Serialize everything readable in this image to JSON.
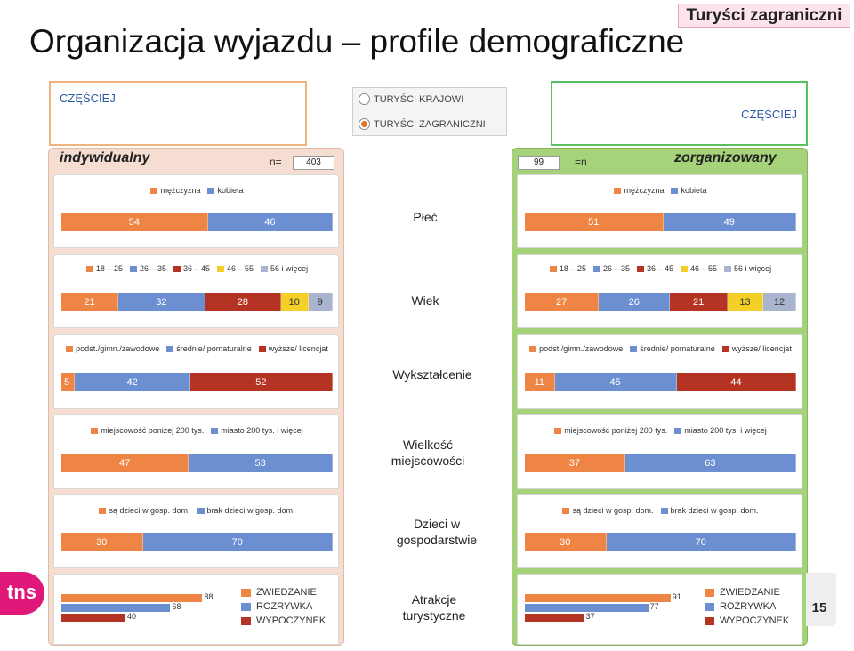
{
  "header": {
    "title": "Organizacja wyjazdu – profile demograficzne",
    "badge": "Turyści zagraniczni",
    "page_number": "15",
    "logo_text": "tns"
  },
  "controls": {
    "left_frequency": "CZĘŚCIEJ",
    "right_frequency": "CZĘŚCIEJ",
    "radio_options": [
      {
        "label": "TURYŚCI KRAJOWI",
        "selected": false
      },
      {
        "label": "TURYŚCI ZAGRANICZNI",
        "selected": true
      }
    ]
  },
  "panels": {
    "left": {
      "title": "indywidualny",
      "n_label": "n=",
      "n_value": "403",
      "bg": "#f6ddd2"
    },
    "right": {
      "title": "zorganizowany",
      "n_label": "=n",
      "n_value": "99",
      "bg": "#a6d37a"
    }
  },
  "row_labels": [
    "Płeć",
    "Wiek",
    "Wykształcenie",
    "Wielkość\nmiejscowości",
    "Dzieci w\ngospodarstwie",
    "Atrakcje\nturystyczne"
  ],
  "colors": {
    "orange": "#ef8544",
    "blue": "#6b8fd0",
    "red": "#b53322",
    "yellow": "#f3cf28",
    "grey": "#a9b5cf"
  },
  "chart_data": [
    {
      "type": "bar",
      "title": "Płeć",
      "categories": [
        "indywidualny",
        "zorganizowany"
      ],
      "series": [
        {
          "name": "mężczyzna",
          "values": [
            54,
            51
          ]
        },
        {
          "name": "kobieta",
          "values": [
            46,
            49
          ]
        }
      ]
    },
    {
      "type": "bar",
      "title": "Wiek",
      "categories": [
        "indywidualny",
        "zorganizowany"
      ],
      "series": [
        {
          "name": "18 – 25",
          "values": [
            21,
            27
          ]
        },
        {
          "name": "26 – 35",
          "values": [
            32,
            26
          ]
        },
        {
          "name": "36 – 45",
          "values": [
            28,
            21
          ]
        },
        {
          "name": "46 – 55",
          "values": [
            10,
            13
          ]
        },
        {
          "name": "56 i więcej",
          "values": [
            9,
            12
          ]
        }
      ]
    },
    {
      "type": "bar",
      "title": "Wykształcenie",
      "categories": [
        "indywidualny",
        "zorganizowany"
      ],
      "series": [
        {
          "name": "podst./gimn./zawodowe",
          "values": [
            5,
            11
          ]
        },
        {
          "name": "średnie/ pomaturalne",
          "values": [
            42,
            45
          ]
        },
        {
          "name": "wyższe/ licencjat",
          "values": [
            52,
            44
          ]
        }
      ]
    },
    {
      "type": "bar",
      "title": "Wielkość miejscowości",
      "categories": [
        "indywidualny",
        "zorganizowany"
      ],
      "series": [
        {
          "name": "miejscowość poniżej 200 tys.",
          "values": [
            47,
            37
          ]
        },
        {
          "name": "miasto 200 tys. i więcej",
          "values": [
            53,
            63
          ]
        }
      ]
    },
    {
      "type": "bar",
      "title": "Dzieci w gospodarstwie",
      "categories": [
        "indywidualny",
        "zorganizowany"
      ],
      "series": [
        {
          "name": "są dzieci w gosp. dom.",
          "values": [
            30,
            30
          ]
        },
        {
          "name": "brak dzieci w gosp. dom.",
          "values": [
            70,
            70
          ]
        }
      ]
    },
    {
      "type": "bar",
      "title": "Atrakcje turystyczne",
      "categories": [
        "indywidualny",
        "zorganizowany"
      ],
      "series": [
        {
          "name": "ZWIEDZANIE",
          "values": [
            88,
            91
          ]
        },
        {
          "name": "ROZRYWKA",
          "values": [
            68,
            77
          ]
        },
        {
          "name": "WYPOCZYNEK",
          "values": [
            40,
            37
          ]
        }
      ]
    }
  ]
}
